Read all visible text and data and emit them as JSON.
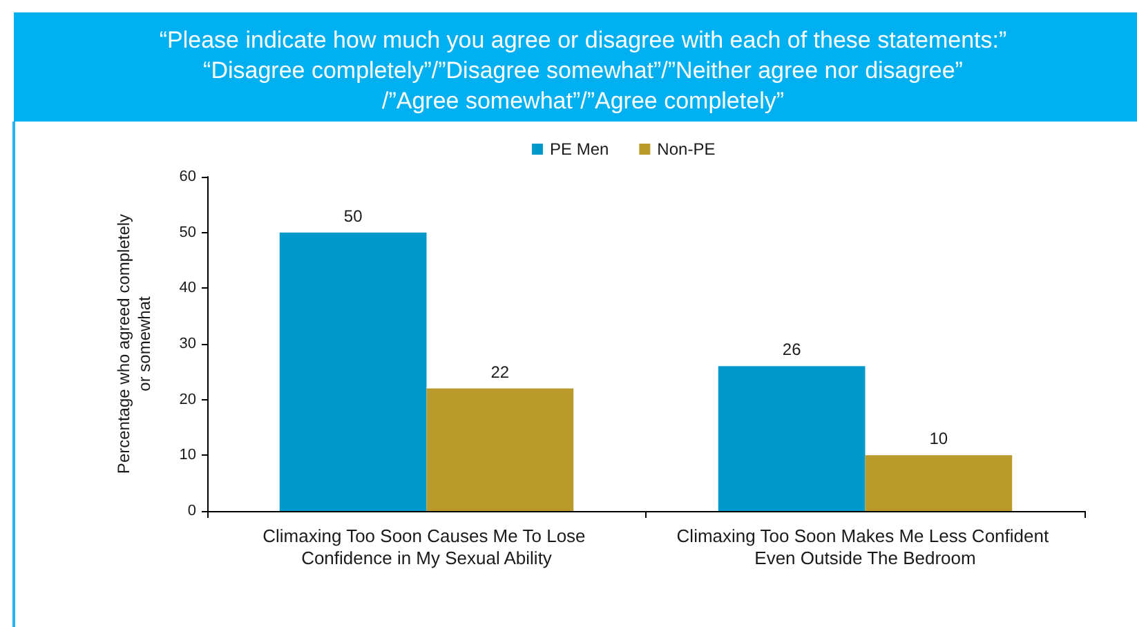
{
  "chart_data": {
    "type": "bar",
    "title": "“Please indicate how much you agree or disagree with each of these statements:”\n“Disagree completely”/”Disagree somewhat”/”Neither agree nor disagree”\n/”Agree somewhat”/”Agree completely”",
    "ylabel": "Percentage who agreed completely\nor somewhat",
    "categories": [
      "Climaxing Too Soon Causes Me To Lose Confidence in My Sexual Ability",
      "Climaxing Too Soon Makes Me Less Confident Even Outside The Bedroom"
    ],
    "series": [
      {
        "name": "PE Men",
        "color": "#0099cb",
        "values": [
          50,
          26
        ]
      },
      {
        "name": "Non-PE",
        "color": "#bb9a2c",
        "values": [
          22,
          10
        ]
      }
    ],
    "ylim": [
      0,
      60
    ],
    "yticks": [
      0,
      10,
      20,
      30,
      40,
      50,
      60
    ],
    "data_labels": true,
    "legend": "top",
    "grid": false
  }
}
